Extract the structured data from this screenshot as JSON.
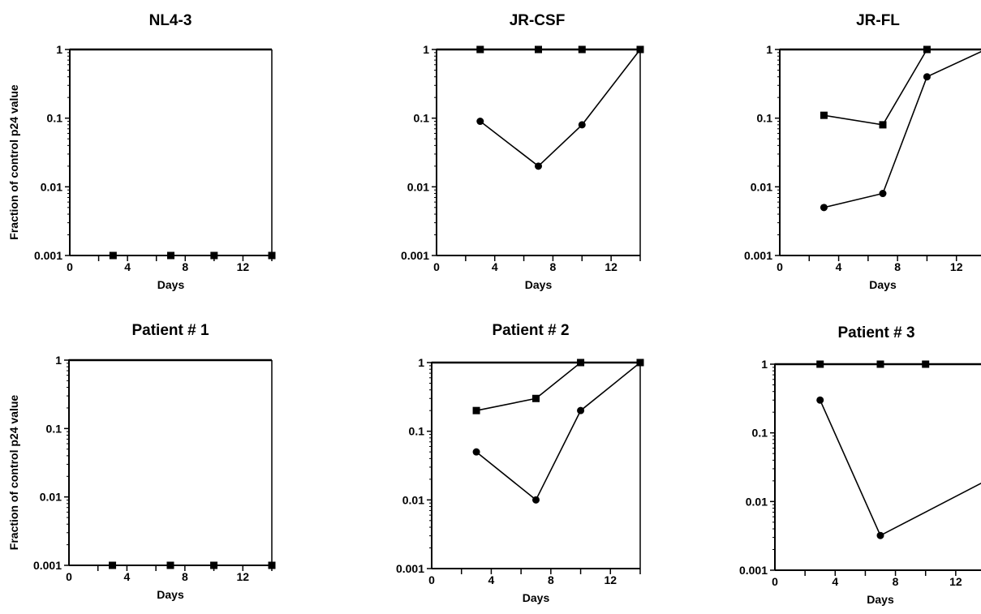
{
  "chart_data": [
    {
      "type": "line",
      "title": "NL4-3",
      "xlabel": "Days",
      "ylabel": "Fraction of control p24 value",
      "xlim": [
        0,
        14
      ],
      "ylim": [
        0.001,
        1
      ],
      "y_scale": "log",
      "x_ticks": [
        0,
        4,
        8,
        12
      ],
      "y_ticks": [
        "0.001",
        "0.01",
        "0.1",
        "1"
      ],
      "series": [
        {
          "marker": "square",
          "x": [
            3,
            7,
            10,
            14
          ],
          "y": [
            0.001,
            0.001,
            0.001,
            0.001
          ]
        }
      ]
    },
    {
      "type": "line",
      "title": "JR-CSF",
      "xlabel": "Days",
      "ylabel": "",
      "xlim": [
        0,
        14
      ],
      "ylim": [
        0.001,
        1
      ],
      "y_scale": "log",
      "x_ticks": [
        0,
        4,
        8,
        12
      ],
      "y_ticks": [
        "0.001",
        "0.01",
        "0.1",
        "1"
      ],
      "series": [
        {
          "marker": "square",
          "x": [
            3,
            7,
            10,
            14
          ],
          "y": [
            1,
            1,
            1,
            1
          ]
        },
        {
          "marker": "circle",
          "x": [
            3,
            7,
            10,
            14
          ],
          "y": [
            0.09,
            0.02,
            0.08,
            1
          ]
        }
      ]
    },
    {
      "type": "line",
      "title": "JR-FL",
      "xlabel": "Days",
      "ylabel": "",
      "xlim": [
        0,
        14
      ],
      "ylim": [
        0.001,
        1
      ],
      "y_scale": "log",
      "x_ticks": [
        0,
        4,
        8,
        12
      ],
      "y_ticks": [
        "0.001",
        "0.01",
        "0.1",
        "1"
      ],
      "series": [
        {
          "marker": "square",
          "x": [
            3,
            7,
            10,
            14
          ],
          "y": [
            0.11,
            0.08,
            1,
            1
          ]
        },
        {
          "marker": "circle",
          "x": [
            3,
            7,
            10,
            14
          ],
          "y": [
            0.005,
            0.008,
            0.4,
            1
          ]
        }
      ]
    },
    {
      "type": "line",
      "title": "Patient # 1",
      "xlabel": "Days",
      "ylabel": "Fraction of control p24 value",
      "xlim": [
        0,
        14
      ],
      "ylim": [
        0.001,
        1
      ],
      "y_scale": "log",
      "x_ticks": [
        0,
        4,
        8,
        12
      ],
      "y_ticks": [
        "0.001",
        "0.01",
        "0.1",
        "1"
      ],
      "series": [
        {
          "marker": "square",
          "x": [
            3,
            7,
            10,
            14
          ],
          "y": [
            0.001,
            0.001,
            0.001,
            0.001
          ]
        }
      ]
    },
    {
      "type": "line",
      "title": "Patient # 2",
      "xlabel": "Days",
      "ylabel": "",
      "xlim": [
        0,
        14
      ],
      "ylim": [
        0.001,
        1
      ],
      "y_scale": "log",
      "x_ticks": [
        0,
        4,
        8,
        12
      ],
      "y_ticks": [
        "0.001",
        "0.01",
        "0.1",
        "1"
      ],
      "series": [
        {
          "marker": "square",
          "x": [
            3,
            7,
            10,
            14
          ],
          "y": [
            0.2,
            0.3,
            1,
            1
          ]
        },
        {
          "marker": "circle",
          "x": [
            3,
            7,
            10,
            14
          ],
          "y": [
            0.05,
            0.01,
            0.2,
            1
          ]
        }
      ]
    },
    {
      "type": "line",
      "title": "Patient # 3",
      "xlabel": "Days",
      "ylabel": "",
      "xlim": [
        0,
        14
      ],
      "ylim": [
        0.001,
        1
      ],
      "y_scale": "log",
      "x_ticks": [
        0,
        4,
        8,
        12
      ],
      "y_ticks": [
        "0.001",
        "0.01",
        "0.1",
        "1"
      ],
      "series": [
        {
          "marker": "square",
          "x": [
            3,
            7,
            10,
            14
          ],
          "y": [
            1,
            1,
            1,
            1
          ]
        },
        {
          "marker": "circle",
          "x": [
            3,
            7,
            14
          ],
          "y": [
            0.3,
            0.0032,
            0.02
          ]
        }
      ]
    }
  ]
}
